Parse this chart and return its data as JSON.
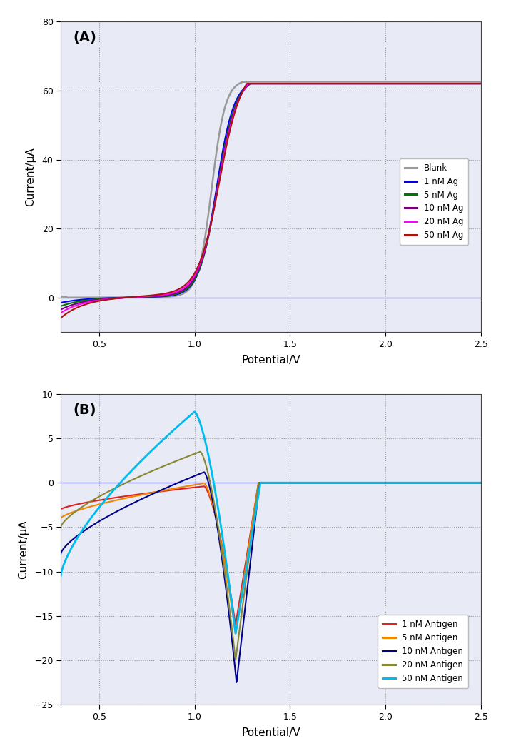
{
  "panel_A": {
    "label": "(A)",
    "xlabel": "Potential/V",
    "ylabel": "Current/μA",
    "xlim": [
      0.3,
      2.5
    ],
    "ylim": [
      -10,
      80
    ],
    "xticks": [
      0.5,
      1.0,
      1.5,
      2.0,
      2.5
    ],
    "yticks": [
      0,
      20,
      40,
      60,
      80
    ],
    "bg_color": "#e8eaf6",
    "zero_line_color": "#5555cc",
    "series": [
      {
        "label": "Blank",
        "color": "#999999",
        "lw": 1.8
      },
      {
        "label": "1 nM Ag",
        "color": "#0000ee",
        "lw": 1.5
      },
      {
        "label": "5 nM Ag",
        "color": "#007700",
        "lw": 1.5
      },
      {
        "label": "10 nM Ag",
        "color": "#770077",
        "lw": 1.5
      },
      {
        "label": "20 nM Ag",
        "color": "#ff00ff",
        "lw": 1.5
      },
      {
        "label": "50 nM Ag",
        "color": "#aa1111",
        "lw": 1.5
      }
    ]
  },
  "panel_B": {
    "label": "(B)",
    "xlabel": "Potential/V",
    "ylabel": "Current/μA",
    "xlim": [
      0.3,
      2.5
    ],
    "ylim": [
      -25,
      10
    ],
    "xticks": [
      0.5,
      1.0,
      1.5,
      2.0,
      2.5
    ],
    "yticks": [
      -25,
      -20,
      -15,
      -10,
      -5,
      0,
      5,
      10
    ],
    "bg_color": "#e8eaf6",
    "zero_line_color": "#5555cc",
    "series": [
      {
        "label": "1 nM Antigen",
        "color": "#dd2222",
        "lw": 1.5
      },
      {
        "label": "5 nM Antigen",
        "color": "#ee8800",
        "lw": 1.5
      },
      {
        "label": "10 nM Antigen",
        "color": "#000088",
        "lw": 1.5
      },
      {
        "label": "20 nM Antigen",
        "color": "#888833",
        "lw": 1.5
      },
      {
        "label": "50 nM Antigen",
        "color": "#00bbee",
        "lw": 2.0
      }
    ]
  }
}
